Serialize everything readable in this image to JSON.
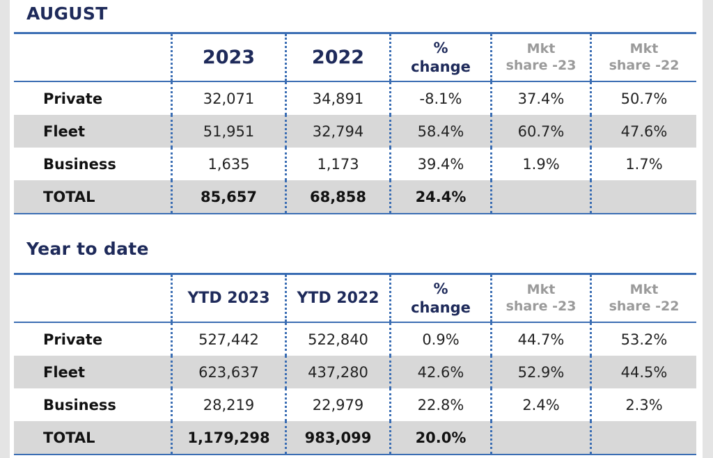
{
  "august": {
    "title": "AUGUST",
    "headers": {
      "col1": "2023",
      "col2": "2022",
      "pct_line1": "%",
      "pct_line2": "change",
      "mkt23_line1": "Mkt",
      "mkt23_line2": "share -23",
      "mkt22_line1": "Mkt",
      "mkt22_line2": "share -22"
    },
    "rows": [
      {
        "label": "Private",
        "v1": "32,071",
        "v2": "34,891",
        "change": "-8.1%",
        "mkt23": "37.4%",
        "mkt22": "50.7%"
      },
      {
        "label": "Fleet",
        "v1": "51,951",
        "v2": "32,794",
        "change": "58.4%",
        "mkt23": "60.7%",
        "mkt22": "47.6%"
      },
      {
        "label": "Business",
        "v1": "1,635",
        "v2": "1,173",
        "change": "39.4%",
        "mkt23": "1.9%",
        "mkt22": "1.7%"
      },
      {
        "label": "TOTAL",
        "v1": "85,657",
        "v2": "68,858",
        "change": "24.4%",
        "mkt23": "",
        "mkt22": ""
      }
    ]
  },
  "ytd": {
    "title": "Year to date",
    "headers": {
      "col1": "YTD 2023",
      "col2": "YTD 2022",
      "pct_line1": "%",
      "pct_line2": "change",
      "mkt23_line1": "Mkt",
      "mkt23_line2": "share -23",
      "mkt22_line1": "Mkt",
      "mkt22_line2": "share -22"
    },
    "rows": [
      {
        "label": "Private",
        "v1": "527,442",
        "v2": "522,840",
        "change": "0.9%",
        "mkt23": "44.7%",
        "mkt22": "53.2%"
      },
      {
        "label": "Fleet",
        "v1": "623,637",
        "v2": "437,280",
        "change": "42.6%",
        "mkt23": "52.9%",
        "mkt22": "44.5%"
      },
      {
        "label": "Business",
        "v1": "28,219",
        "v2": "22,979",
        "change": "22.8%",
        "mkt23": "2.4%",
        "mkt22": "2.3%"
      },
      {
        "label": "TOTAL",
        "v1": "1,179,298",
        "v2": "983,099",
        "change": "20.0%",
        "mkt23": "",
        "mkt22": ""
      }
    ]
  },
  "colors": {
    "title": "#1e2a5a",
    "rule": "#3a6db3",
    "shade": "#d8d8d8",
    "muted_header": "#9a9a9a"
  }
}
